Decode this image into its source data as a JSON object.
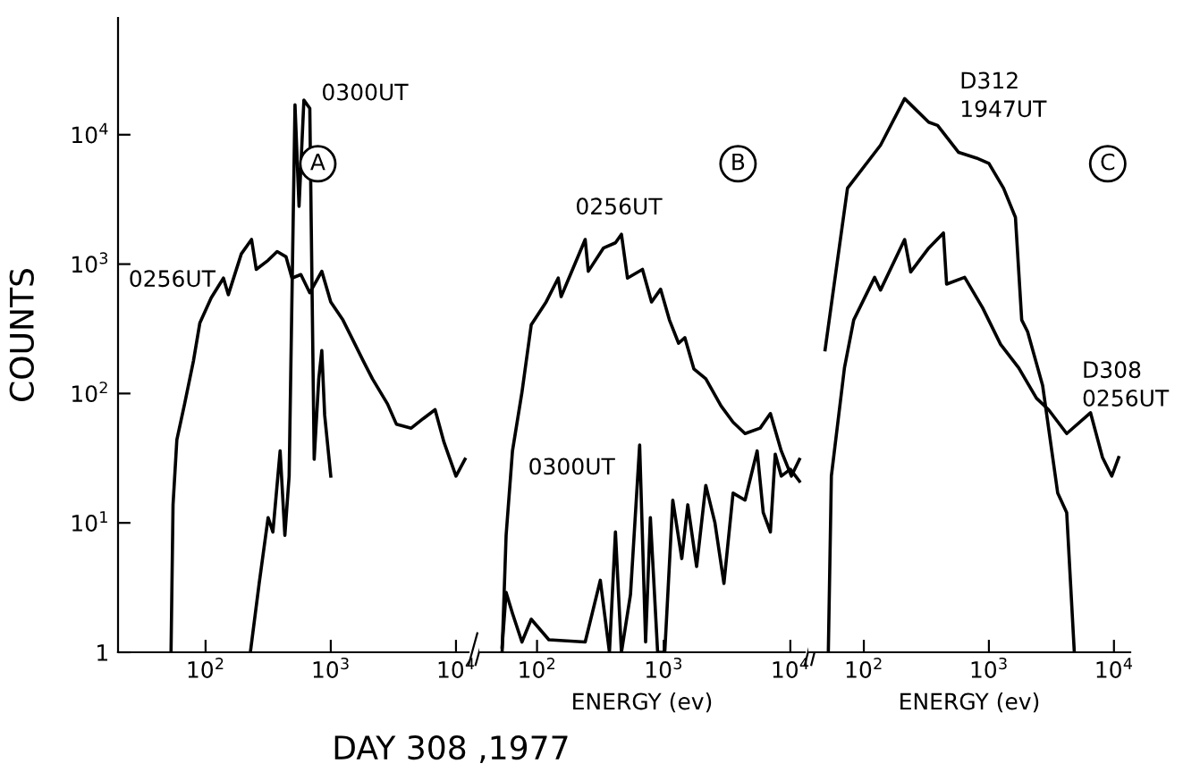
{
  "chart_data": [
    {
      "type": "line",
      "ylabel": "COUNTS",
      "xlabel": "DAY 308 ,1977",
      "log": "xy",
      "grid": false,
      "legend": false,
      "marker": "none",
      "line_style": "solid",
      "xlim": [
        20,
        12600
      ],
      "ylim": [
        1,
        80000
      ],
      "xticks": [
        {
          "value": 100,
          "label": "10$^{2}$"
        },
        {
          "value": 1000,
          "label": "10$^{3}$"
        },
        {
          "value": 10000,
          "label": "10$^{4}$"
        }
      ],
      "yticks": [
        1,
        {
          "value": 10,
          "label": "10$^{1}$"
        },
        {
          "value": 100,
          "label": "10$^{2}$"
        },
        {
          "value": 1000,
          "label": "10$^{3}$"
        },
        {
          "value": 10000,
          "label": "10$^{4}$"
        }
      ],
      "series": [
        {
          "name": "0256UT",
          "color": "#000000",
          "x": [
            53,
            55,
            59,
            68,
            80,
            90,
            111,
            139,
            152,
            193,
            233,
            254,
            316,
            373,
            439,
            490,
            577,
            680,
            848,
            1000,
            1250,
            1470,
            1820,
            2150,
            2840,
            3340,
            4390,
            5480,
            6810,
            8020,
            10000,
            11800
          ],
          "values": [
            1,
            13.8,
            44,
            83,
            178,
            350,
            550,
            780,
            580,
            1200,
            1550,
            910,
            1070,
            1250,
            1140,
            780,
            830,
            600,
            880,
            510,
            370,
            270,
            178,
            130,
            83,
            58,
            54,
            64,
            75,
            42,
            23,
            31
          ]
        },
        {
          "name": "0300UT",
          "color": "#000000",
          "x": [
            228,
            268,
            316,
            345,
            394,
            430,
            465,
            518,
            558,
            610,
            680,
            737,
            802,
            848,
            894,
            1000
          ],
          "values": [
            1,
            3.4,
            11,
            8.5,
            36,
            8,
            23,
            17000,
            2800,
            18500,
            16000,
            31,
            130,
            215,
            68,
            23
          ]
        }
      ],
      "annotations": [
        "A"
      ]
    },
    {
      "type": "line",
      "xlabel": "ENERGY (ev)",
      "log": "xy",
      "grid": false,
      "legend": false,
      "marker": "none",
      "line_style": "solid",
      "tick_labels": "x",
      "xlim": [
        35,
        13000
      ],
      "ylim": [
        1,
        80000
      ],
      "xticks": [
        {
          "value": 100,
          "label": "10$^{2}$"
        },
        {
          "value": 1000,
          "label": "10$^{3}$"
        },
        {
          "value": 10000,
          "label": "10$^{4}$"
        }
      ],
      "series": [
        {
          "name": "0256UT",
          "color": "#000000",
          "x": [
            53,
            57,
            64,
            76,
            90,
            118,
            147,
            155,
            240,
            254,
            334,
            416,
            464,
            518,
            680,
            802,
            946,
            1110,
            1310,
            1470,
            1730,
            2150,
            2840,
            3530,
            4390,
            5780,
            6960,
            8480,
            10200,
            11800
          ],
          "values": [
            1,
            8,
            36,
            102,
            340,
            510,
            780,
            560,
            1550,
            880,
            1330,
            1460,
            1700,
            780,
            910,
            510,
            640,
            370,
            245,
            270,
            155,
            130,
            80,
            60,
            49,
            54,
            70,
            36,
            23,
            31
          ]
        },
        {
          "name": "0300UT",
          "color": "#000000",
          "x": [
            53,
            57,
            64,
            76,
            90,
            124,
            240,
            316,
            373,
            416,
            464,
            547,
            646,
            720,
            785,
            896,
            1020,
            1180,
            1390,
            1550,
            1820,
            2150,
            2540,
            2990,
            3530,
            4390,
            5470,
            6110,
            6960,
            7600,
            8480,
            10000,
            11800
          ],
          "values": [
            1.1,
            2.9,
            2,
            1.2,
            1.8,
            1.25,
            1.2,
            3.6,
            1,
            8.5,
            1,
            2.8,
            40,
            1.2,
            11,
            1,
            1,
            15,
            5.3,
            13.8,
            4.6,
            19.5,
            10,
            3.4,
            17,
            15,
            36,
            12,
            8.5,
            34,
            23,
            26,
            21
          ]
        }
      ],
      "annotations": [
        "B"
      ]
    },
    {
      "type": "line",
      "xlabel": "ENERGY (ev)",
      "log": "xy",
      "grid": false,
      "legend": false,
      "marker": "none",
      "line_style": "solid",
      "tick_labels": "x",
      "xlim": [
        36,
        13500
      ],
      "ylim": [
        1,
        80000
      ],
      "xticks": [
        {
          "value": 100,
          "label": "10$^{2}$"
        },
        {
          "value": 1000,
          "label": "10$^{3}$"
        },
        {
          "value": 10000,
          "label": "10$^{4}$"
        }
      ],
      "series": [
        {
          "name": "D312\n1947UT",
          "color": "#000000",
          "x": [
            49,
            74,
            136,
            212,
            330,
            389,
            573,
            798,
            1000,
            1310,
            1630,
            1830,
            2040,
            2690,
            3550,
            4190,
            4820
          ],
          "values": [
            218,
            3860,
            8300,
            19000,
            12500,
            11800,
            7300,
            6600,
            6000,
            3860,
            2300,
            370,
            300,
            115,
            17,
            12,
            1
          ]
        },
        {
          "name": "D308\n0256UT",
          "color": "#000000",
          "x": [
            52,
            55,
            70,
            83,
            122,
            136,
            212,
            237,
            330,
            433,
            459,
            640,
            890,
            1240,
            1730,
            2400,
            3000,
            4190,
            6500,
            8100,
            9600,
            10900
          ],
          "values": [
            1,
            23,
            158,
            370,
            790,
            630,
            1550,
            870,
            1330,
            1740,
            700,
            790,
            460,
            240,
            158,
            92,
            75,
            49,
            71,
            32,
            23,
            32
          ]
        }
      ],
      "annotations": [
        "C"
      ]
    }
  ]
}
